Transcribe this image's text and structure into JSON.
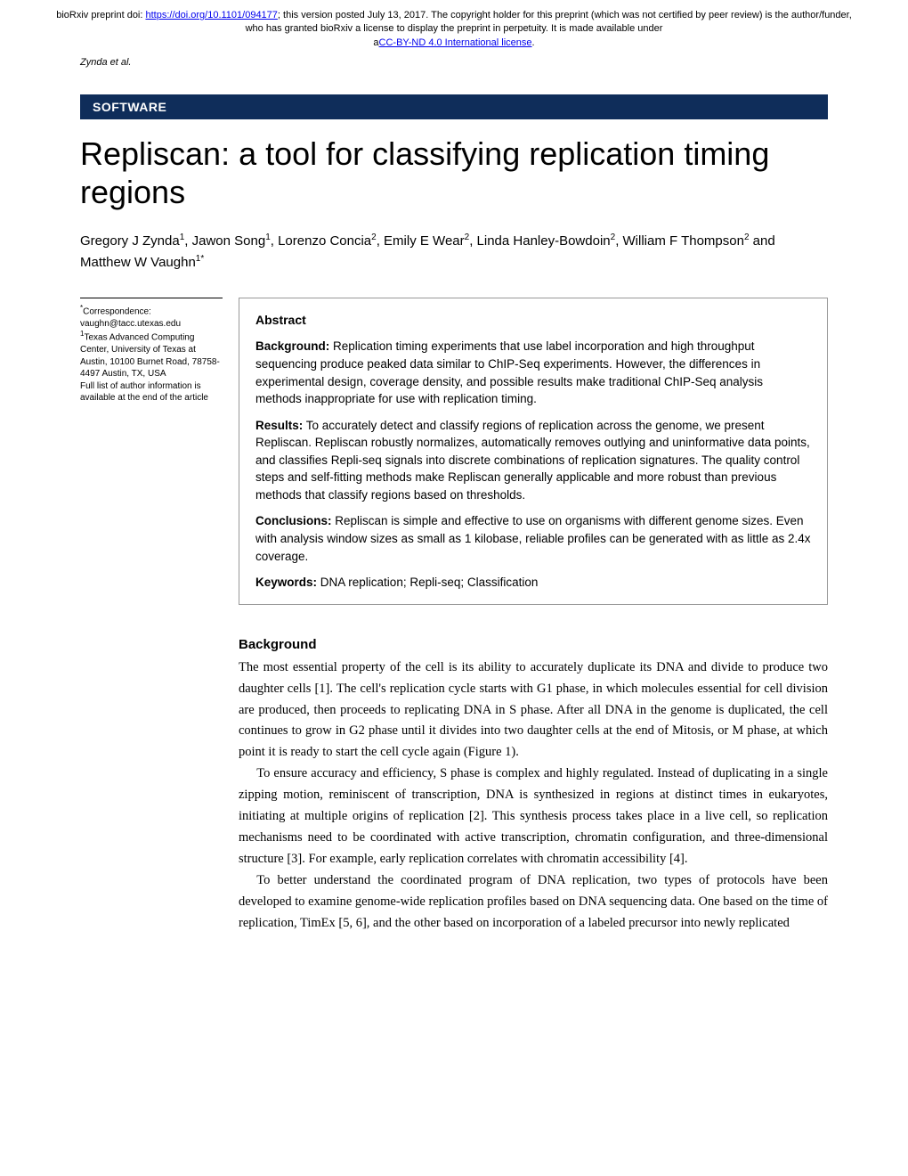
{
  "preprint": {
    "prefix": "bioRxiv preprint doi: ",
    "doi_url": "https://doi.org/10.1101/094177",
    "middle": "; this version posted July 13, 2017. The copyright holder for this preprint (which was not certified by peer review) is the author/funder, who has granted bioRxiv a license to display the preprint in perpetuity. It is made available under ",
    "license_prefix": "a",
    "license_link": "CC-BY-ND 4.0 International license",
    "license_suffix": "."
  },
  "running_head": "Zynda et al.",
  "banner": "SOFTWARE",
  "title": "Repliscan: a tool for classifying replication timing regions",
  "authors_html": "Gregory J Zynda<sup>1</sup>, Jawon Song<sup>1</sup>, Lorenzo Concia<sup>2</sup>, Emily E Wear<sup>2</sup>, Linda Hanley-Bowdoin<sup>2</sup>, William F Thompson<sup>2</sup> and Matthew W Vaughn<sup>1*</sup>",
  "sidebar": {
    "corr_label": "*Correspondence:",
    "corr_email": "vaughn@tacc.utexas.edu",
    "affil1": "<sup>1</sup>Texas Advanced Computing Center, University of Texas at Austin, 10100 Burnet Road, 78758-4497 Austin, TX, USA",
    "full_list": "Full list of author information is available at the end of the article"
  },
  "abstract": {
    "heading": "Abstract",
    "background_label": "Background:",
    "background": " Replication timing experiments that use label incorporation and high throughput sequencing produce peaked data similar to ChIP-Seq experiments. However, the differences in experimental design, coverage density, and possible results make traditional ChIP-Seq analysis methods inappropriate for use with replication timing.",
    "results_label": "Results:",
    "results": " To accurately detect and classify regions of replication across the genome, we present Repliscan. Repliscan robustly normalizes, automatically removes outlying and uninformative data points, and classifies Repli-seq signals into discrete combinations of replication signatures. The quality control steps and self-fitting methods make Repliscan generally applicable and more robust than previous methods that classify regions based on thresholds.",
    "conclusions_label": "Conclusions:",
    "conclusions": " Repliscan is simple and effective to use on organisms with different genome sizes. Even with analysis window sizes as small as 1 kilobase, reliable profiles can be generated with as little as 2.4x coverage.",
    "keywords_label": "Keywords:",
    "keywords": " DNA replication; Repli-seq; Classification"
  },
  "background": {
    "heading": "Background",
    "p1": "The most essential property of the cell is its ability to accurately duplicate its DNA and divide to produce two daughter cells [1]. The cell's replication cycle starts with G1 phase, in which molecules essential for cell division are produced, then proceeds to replicating DNA in S phase. After all DNA in the genome is duplicated, the cell continues to grow in G2 phase until it divides into two daughter cells at the end of Mitosis, or M phase, at which point it is ready to start the cell cycle again (Figure 1).",
    "p2": "To ensure accuracy and efficiency, S phase is complex and highly regulated. Instead of duplicating in a single zipping motion, reminiscent of transcription, DNA is synthesized in regions at distinct times in eukaryotes, initiating at multiple origins of replication [2]. This synthesis process takes place in a live cell, so replication mechanisms need to be coordinated with active transcription, chromatin configuration, and three-dimensional structure [3]. For example, early replication correlates with chromatin accessibility [4].",
    "p3": "To better understand the coordinated program of DNA replication, two types of protocols have been developed to examine genome-wide replication profiles based on DNA sequencing data. One based on the time of replication, TimEx [5, 6], and the other based on incorporation of a labeled precursor into newly replicated"
  },
  "colors": {
    "banner_bg": "#0f2d5a",
    "link": "#0000ee",
    "border": "#999999"
  }
}
